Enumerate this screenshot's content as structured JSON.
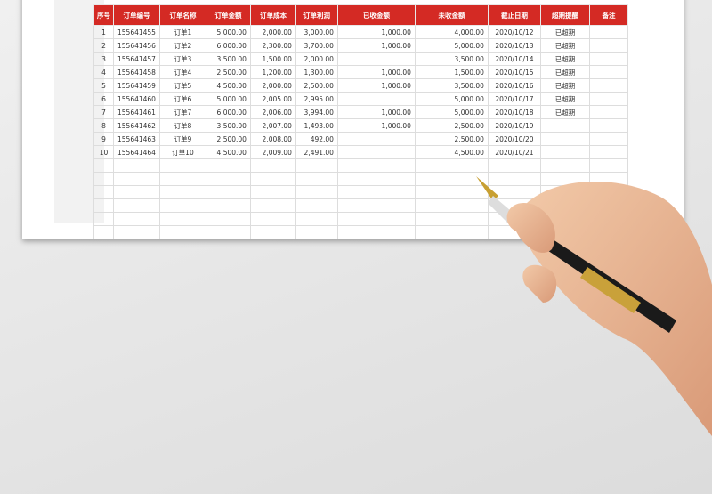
{
  "table": {
    "headers": [
      "序号",
      "订单编号",
      "订单名称",
      "订单金额",
      "订单成本",
      "订单利润",
      "已收金额",
      "未收金额",
      "截止日期",
      "超期提醒",
      "备注"
    ],
    "rows": [
      [
        "1",
        "155641455",
        "订单1",
        "5,000.00",
        "2,000.00",
        "3,000.00",
        "1,000.00",
        "4,000.00",
        "2020/10/12",
        "已超期",
        ""
      ],
      [
        "2",
        "155641456",
        "订单2",
        "6,000.00",
        "2,300.00",
        "3,700.00",
        "1,000.00",
        "5,000.00",
        "2020/10/13",
        "已超期",
        ""
      ],
      [
        "3",
        "155641457",
        "订单3",
        "3,500.00",
        "1,500.00",
        "2,000.00",
        "",
        "3,500.00",
        "2020/10/14",
        "已超期",
        ""
      ],
      [
        "4",
        "155641458",
        "订单4",
        "2,500.00",
        "1,200.00",
        "1,300.00",
        "1,000.00",
        "1,500.00",
        "2020/10/15",
        "已超期",
        ""
      ],
      [
        "5",
        "155641459",
        "订单5",
        "4,500.00",
        "2,000.00",
        "2,500.00",
        "1,000.00",
        "3,500.00",
        "2020/10/16",
        "已超期",
        ""
      ],
      [
        "6",
        "155641460",
        "订单6",
        "5,000.00",
        "2,005.00",
        "2,995.00",
        "",
        "5,000.00",
        "2020/10/17",
        "已超期",
        ""
      ],
      [
        "7",
        "155641461",
        "订单7",
        "6,000.00",
        "2,006.00",
        "3,994.00",
        "1,000.00",
        "5,000.00",
        "2020/10/18",
        "已超期",
        ""
      ],
      [
        "8",
        "155641462",
        "订单8",
        "3,500.00",
        "2,007.00",
        "1,493.00",
        "1,000.00",
        "2,500.00",
        "2020/10/19",
        "",
        ""
      ],
      [
        "9",
        "155641463",
        "订单9",
        "2,500.00",
        "2,008.00",
        "492.00",
        "",
        "2,500.00",
        "2020/10/20",
        "",
        ""
      ],
      [
        "10",
        "155641464",
        "订单10",
        "4,500.00",
        "2,009.00",
        "2,491.00",
        "",
        "4,500.00",
        "2020/10/21",
        "",
        ""
      ]
    ]
  },
  "colors": {
    "header": "#d42a24"
  }
}
